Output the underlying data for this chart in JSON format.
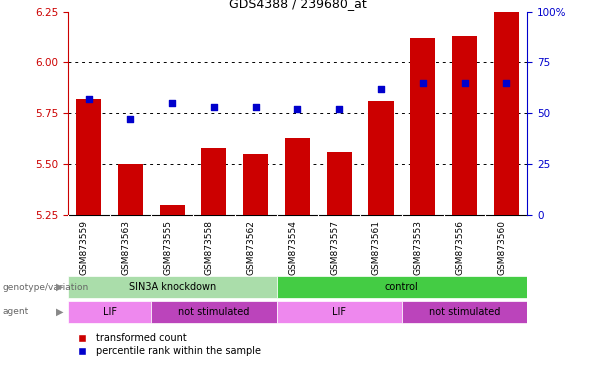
{
  "title": "GDS4388 / 239680_at",
  "samples": [
    "GSM873559",
    "GSM873563",
    "GSM873555",
    "GSM873558",
    "GSM873562",
    "GSM873554",
    "GSM873557",
    "GSM873561",
    "GSM873553",
    "GSM873556",
    "GSM873560"
  ],
  "bar_values": [
    5.82,
    5.5,
    5.3,
    5.58,
    5.55,
    5.63,
    5.56,
    5.81,
    6.12,
    6.13,
    6.25
  ],
  "dot_values": [
    57,
    47,
    55,
    53,
    53,
    52,
    52,
    62,
    65,
    65,
    65
  ],
  "ylim_left": [
    5.25,
    6.25
  ],
  "ylim_right": [
    0,
    100
  ],
  "yticks_left": [
    5.25,
    5.5,
    5.75,
    6.0,
    6.25
  ],
  "yticks_right": [
    0,
    25,
    50,
    75,
    100
  ],
  "ytick_right_labels": [
    "0",
    "25",
    "50",
    "75",
    "100%"
  ],
  "bar_color": "#CC0000",
  "dot_color": "#0000CC",
  "groups_genotype": [
    {
      "label": "SIN3A knockdown",
      "start": 0,
      "end": 5,
      "color": "#aaddaa"
    },
    {
      "label": "control",
      "start": 5,
      "end": 11,
      "color": "#44cc44"
    }
  ],
  "groups_agent": [
    {
      "label": "LIF",
      "start": 0,
      "end": 2,
      "color": "#ee88ee"
    },
    {
      "label": "not stimulated",
      "start": 2,
      "end": 5,
      "color": "#bb44bb"
    },
    {
      "label": "LIF",
      "start": 5,
      "end": 8,
      "color": "#ee88ee"
    },
    {
      "label": "not stimulated",
      "start": 8,
      "end": 11,
      "color": "#bb44bb"
    }
  ],
  "legend_items": [
    {
      "label": "transformed count",
      "color": "#CC0000"
    },
    {
      "label": "percentile rank within the sample",
      "color": "#0000CC"
    }
  ],
  "left_axis_color": "#CC0000",
  "right_axis_color": "#0000CC",
  "label_bg": "#cccccc",
  "grid_ticks": [
    5.5,
    5.75,
    6.0
  ]
}
